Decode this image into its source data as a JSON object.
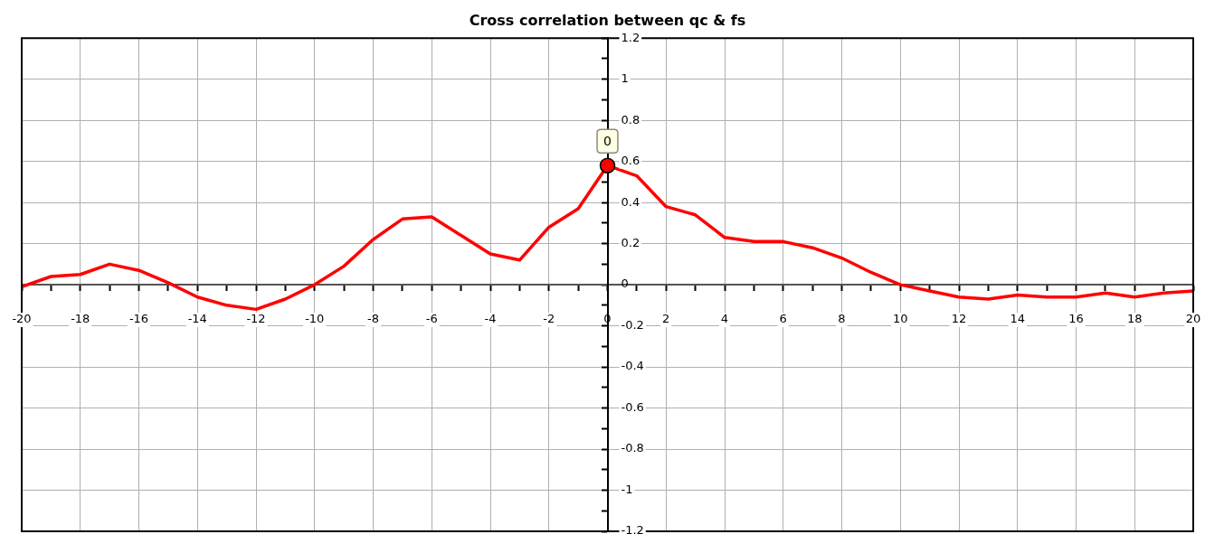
{
  "chart_data": {
    "type": "line",
    "title": "Cross correlation between qc & fs",
    "x": [
      -20,
      -19,
      -18,
      -17,
      -16,
      -15,
      -14,
      -13,
      -12,
      -11,
      -10,
      -9,
      -8,
      -7,
      -6,
      -5,
      -4,
      -3,
      -2,
      -1,
      0,
      1,
      2,
      3,
      4,
      5,
      6,
      7,
      8,
      9,
      10,
      11,
      12,
      13,
      14,
      15,
      16,
      17,
      18,
      19,
      20
    ],
    "series": [
      {
        "color": "#ff0000",
        "values": [
          -0.01,
          0.04,
          0.05,
          0.1,
          0.07,
          0.01,
          -0.06,
          -0.1,
          -0.12,
          -0.07,
          0.0,
          0.09,
          0.22,
          0.32,
          0.33,
          0.24,
          0.15,
          0.12,
          0.28,
          0.37,
          0.58,
          0.53,
          0.38,
          0.34,
          0.23,
          0.21,
          0.21,
          0.18,
          0.13,
          0.06,
          0.0,
          -0.03,
          -0.06,
          -0.07,
          -0.05,
          -0.06,
          -0.06,
          -0.04,
          -0.06,
          -0.04,
          -0.03
        ]
      }
    ],
    "xlim": [
      -20,
      20
    ],
    "xticks": [
      -20,
      {
        "value": -19,
        "label": null
      },
      -18,
      {
        "value": -17,
        "label": null
      },
      -16,
      {
        "value": -15,
        "label": null
      },
      -14,
      {
        "value": -13,
        "label": null
      },
      -12,
      {
        "value": -11,
        "label": null
      },
      -10,
      {
        "value": -9,
        "label": null
      },
      -8,
      {
        "value": -7,
        "label": null
      },
      -6,
      {
        "value": -5,
        "label": null
      },
      -4,
      {
        "value": -3,
        "label": null
      },
      -2,
      {
        "value": -1,
        "label": null
      },
      0,
      {
        "value": 1,
        "label": null
      },
      2,
      {
        "value": 3,
        "label": null
      },
      4,
      {
        "value": 5,
        "label": null
      },
      6,
      {
        "value": 7,
        "label": null
      },
      8,
      {
        "value": 9,
        "label": null
      },
      10,
      {
        "value": 11,
        "label": null
      },
      12,
      {
        "value": 13,
        "label": null
      },
      14,
      {
        "value": 15,
        "label": null
      },
      16,
      {
        "value": 17,
        "label": null
      },
      18,
      {
        "value": 19,
        "label": null
      },
      20
    ],
    "ylim": [
      -1.2,
      1.2
    ],
    "yticks": [
      -1.2,
      {
        "value": -1.1,
        "label": null
      },
      -1,
      {
        "value": -0.9,
        "label": null
      },
      -0.8,
      {
        "value": -0.7,
        "label": null
      },
      -0.6,
      {
        "value": -0.5,
        "label": null
      },
      -0.4,
      {
        "value": -0.3,
        "label": null
      },
      -0.2,
      {
        "value": -0.1,
        "label": null
      },
      0,
      {
        "value": 0.1,
        "label": null
      },
      0.2,
      {
        "value": 0.3,
        "label": null
      },
      0.4,
      {
        "value": 0.5,
        "label": null
      },
      0.6,
      {
        "value": 0.7,
        "label": null
      },
      0.8,
      {
        "value": 0.9,
        "label": null
      },
      1,
      {
        "value": 1.1,
        "label": null
      },
      1.2
    ],
    "grid": true,
    "legend": false,
    "marker": "none",
    "line_style": "solid",
    "annotations": [
      {
        "text": "0",
        "x": 0,
        "y": 0.58
      }
    ]
  }
}
